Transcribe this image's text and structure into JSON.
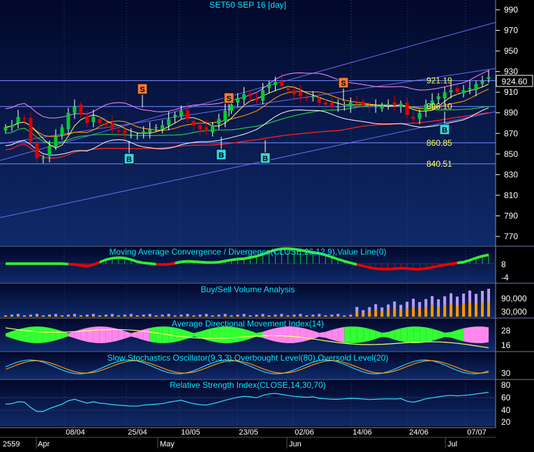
{
  "colors": {
    "panel_bg": "#0a1c4a",
    "axis_bg": "#000000",
    "grid": "#3a4a78",
    "title": "#00e8ff",
    "up": "#00cc33",
    "down": "#dd0000",
    "tick": "#ffffff",
    "level": "#ffff66",
    "price_tag": "#ffff88",
    "sell": "#f07a3a",
    "buy": "#2fd8e8"
  },
  "main": {
    "title": "SET50 SEP 16  [day]",
    "current_price": "924.60",
    "level_labels": [
      "921.19",
      "896.10",
      "860.85",
      "840.51"
    ],
    "signals": [
      "S",
      "S",
      "S",
      "B",
      "B",
      "B",
      "B"
    ]
  },
  "chart_data": [
    {
      "type": "line",
      "title": "SET50 SEP 16  [day]",
      "y_ticks": [
        770,
        790,
        810,
        830,
        850,
        870,
        890,
        910,
        930,
        950,
        970,
        990
      ],
      "ylim": [
        760,
        1000
      ],
      "horizontal_levels": [
        921.19,
        896.1,
        860.85,
        840.51
      ],
      "last_price": 924.6,
      "close": [
        876,
        878,
        886,
        884,
        862,
        846,
        846,
        858,
        867,
        876,
        890,
        896,
        888,
        880,
        886,
        880,
        878,
        874,
        872,
        870,
        868,
        868,
        872,
        874,
        876,
        878,
        884,
        888,
        892,
        884,
        878,
        874,
        872,
        878,
        884,
        892,
        898,
        904,
        908,
        906,
        902,
        912,
        918,
        920,
        916,
        912,
        908,
        906,
        904,
        906,
        900,
        898,
        896,
        896,
        898,
        900,
        899,
        897,
        895,
        896,
        897,
        898,
        897,
        899,
        888,
        884,
        890,
        898,
        902,
        906,
        910,
        912,
        910,
        912,
        914,
        918,
        921,
        924.6
      ],
      "signals": [
        {
          "label": "S",
          "type": "sell"
        },
        {
          "label": "S",
          "type": "sell"
        },
        {
          "label": "S",
          "type": "sell"
        },
        {
          "label": "B",
          "type": "buy"
        },
        {
          "label": "B",
          "type": "buy"
        },
        {
          "label": "B",
          "type": "buy"
        },
        {
          "label": "B",
          "type": "buy"
        }
      ]
    },
    {
      "type": "line",
      "title": "Moving Average Convergence / Divergence(CLOSE,26,12,9),Value Line(0)",
      "y_ticks": [
        8,
        -4
      ]
    },
    {
      "type": "bar",
      "title": "Buy/Sell Volume Analysis",
      "y_ticks": [
        "90,000",
        "30,000"
      ]
    },
    {
      "type": "area",
      "title": "Average Directional Movement Index(14)",
      "y_ticks": [
        28,
        16
      ]
    },
    {
      "type": "line",
      "title": "Slow Stochastics Oscillator(9,3,3),Overbought Level(80),Oversold Level(20)",
      "y_ticks": [
        30
      ]
    },
    {
      "type": "line",
      "title": "Relative Strength Index(CLOSE,14,30,70)",
      "y_ticks": [
        80,
        60,
        40,
        20
      ]
    }
  ],
  "x_axis": {
    "dates": [
      "08/04",
      "25/04",
      "10/05",
      "23/05",
      "02/06",
      "14/06",
      "24/06",
      "07/07"
    ],
    "year": "2559",
    "months": [
      "Apr",
      "May",
      "Jun",
      "Jul"
    ]
  }
}
